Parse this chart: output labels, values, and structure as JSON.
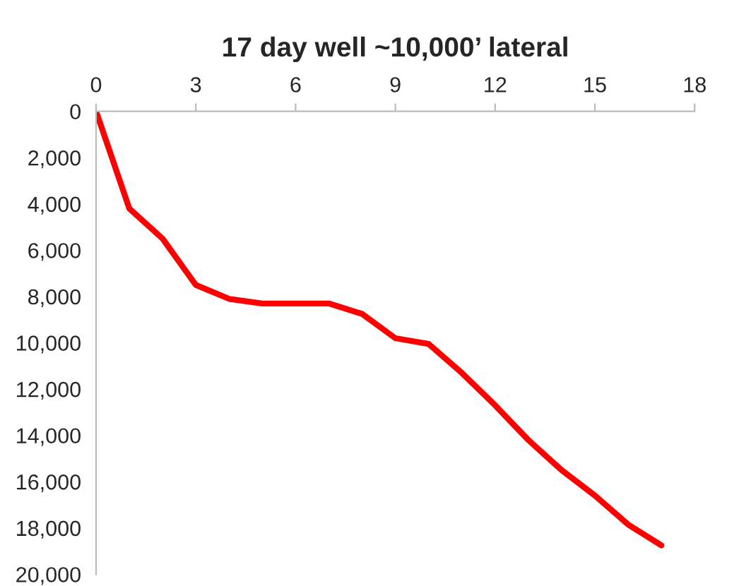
{
  "chart_data": {
    "type": "line",
    "title": "17 day well ~10,000’ lateral",
    "x": [
      0,
      1,
      2,
      3,
      4,
      5,
      6,
      7,
      8,
      9,
      10,
      11,
      12,
      13,
      14,
      15,
      16,
      17
    ],
    "series": [
      {
        "color": "#ff0000",
        "values": [
          0,
          4200,
          5500,
          7500,
          8100,
          8300,
          8300,
          8300,
          8750,
          9800,
          10050,
          11300,
          12700,
          14200,
          15500,
          16600,
          17850,
          18750
        ]
      }
    ],
    "xlim": [
      0,
      18
    ],
    "xticks": [
      0,
      3,
      6,
      9,
      12,
      15,
      18
    ],
    "ylim": [
      20000,
      0
    ],
    "yticks": [
      {
        "value": 0,
        "label": "0"
      },
      {
        "value": 2000,
        "label": "2,000"
      },
      {
        "value": 4000,
        "label": "4,000"
      },
      {
        "value": 6000,
        "label": "6,000"
      },
      {
        "value": 8000,
        "label": "8,000"
      },
      {
        "value": 10000,
        "label": "10,000"
      },
      {
        "value": 12000,
        "label": "12,000"
      },
      {
        "value": 14000,
        "label": "14,000"
      },
      {
        "value": 16000,
        "label": "16,000"
      },
      {
        "value": 18000,
        "label": "18,000"
      },
      {
        "value": 20000,
        "label": "20,000"
      }
    ],
    "grid": false,
    "legend": false,
    "marker": "none",
    "line_style": "solid"
  }
}
